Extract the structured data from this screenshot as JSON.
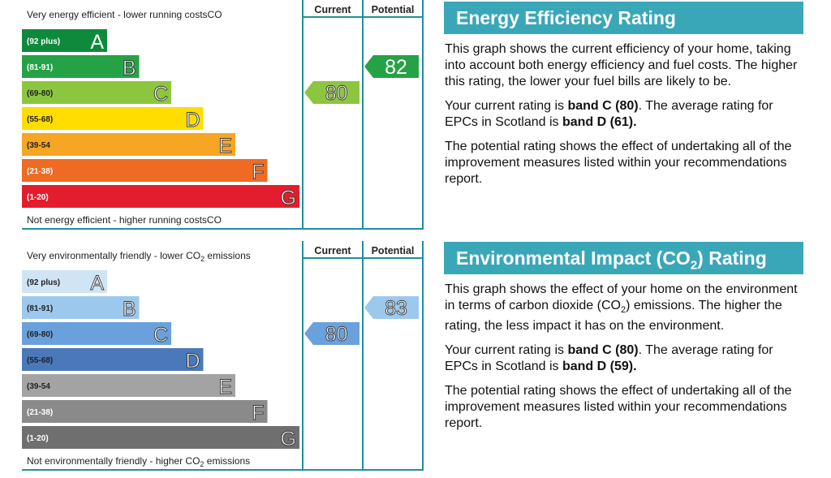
{
  "chart_data": [
    {
      "type": "table",
      "title": "",
      "top_label": "Very energy efficient - lower running costs",
      "bottom_label": "Not energy efficient - higher running costs",
      "columns": [
        "Current",
        "Potential"
      ],
      "bands": [
        {
          "range": "(92 plus)",
          "letter": "A",
          "color": "#0f8a3c",
          "text": "light",
          "letter_style": "solid"
        },
        {
          "range": "(81-91)",
          "letter": "B",
          "color": "#26a246",
          "text": "light",
          "letter_style": "outline"
        },
        {
          "range": "(69-80)",
          "letter": "C",
          "color": "#8cc63f",
          "text": "dark",
          "letter_style": "outline"
        },
        {
          "range": "(55-68)",
          "letter": "D",
          "color": "#ffdd00",
          "text": "dark",
          "letter_style": "outline"
        },
        {
          "range": "(39-54",
          "letter": "E",
          "color": "#f6a623",
          "text": "dark",
          "letter_style": "outline"
        },
        {
          "range": "(21-38)",
          "letter": "F",
          "color": "#ef6a23",
          "text": "light",
          "letter_style": "outline"
        },
        {
          "range": "(1-20)",
          "letter": "G",
          "color": "#e31d2d",
          "text": "light",
          "letter_style": "outline"
        }
      ],
      "current": {
        "value": 80,
        "band": "C",
        "color": "#8cc63f",
        "text_style": "outline"
      },
      "potential": {
        "value": 82,
        "band": "B",
        "color": "#26a246",
        "text_style": "solid"
      }
    },
    {
      "type": "table",
      "title": "",
      "top_label": "Very environmentally friendly - lower CO2 emissions",
      "bottom_label": "Not environmentally friendly - higher CO2 emissions",
      "columns": [
        "Current",
        "Potential"
      ],
      "bands": [
        {
          "range": "(92 plus)",
          "letter": "A",
          "color": "#cfe4f5",
          "text": "dark",
          "letter_style": "outline"
        },
        {
          "range": "(81-91)",
          "letter": "B",
          "color": "#9cc8ed",
          "text": "dark",
          "letter_style": "outline"
        },
        {
          "range": "(69-80)",
          "letter": "C",
          "color": "#6aa1dc",
          "text": "dark",
          "letter_style": "outline"
        },
        {
          "range": "(55-68)",
          "letter": "D",
          "color": "#4a78b8",
          "text": "dark",
          "letter_style": "outline"
        },
        {
          "range": "(39-54",
          "letter": "E",
          "color": "#a3a3a3",
          "text": "dark",
          "letter_style": "outline"
        },
        {
          "range": "(21-38)",
          "letter": "F",
          "color": "#8a8a8a",
          "text": "light",
          "letter_style": "outline"
        },
        {
          "range": "(1-20)",
          "letter": "G",
          "color": "#6f6f6f",
          "text": "light",
          "letter_style": "outline"
        }
      ],
      "current": {
        "value": 80,
        "band": "C",
        "color": "#6aa1dc",
        "text_style": "outline"
      },
      "potential": {
        "value": 83,
        "band": "B",
        "color": "#9cc8ed",
        "text_style": "outline"
      }
    }
  ],
  "panels": {
    "energy": {
      "title": "Energy Efficiency Rating",
      "p1": "This graph shows the current efficiency of your home, taking into account both energy efficiency and fuel costs. The higher this rating, the lower your fuel bills are likely to be.",
      "p2_pre": "Your current rating is ",
      "p2_band": "band C (80)",
      "p2_mid": ". The average rating for EPCs in Scotland is ",
      "p2_avg": "band D (61).",
      "p3": "The potential rating shows the effect of undertaking all of the improvement measures listed within your recommendations report."
    },
    "environment": {
      "title_pre": "Environmental Impact (CO",
      "title_sub": "2",
      "title_post": ") Rating",
      "p1_pre": "This graph shows the effect of your home on the environment in terms of carbon dioxide (CO",
      "p1_sub": "2",
      "p1_post": ") emissions. The higher the rating, the less impact it has on the environment.",
      "p2_pre": "Your current rating is ",
      "p2_band": "band C (80)",
      "p2_mid": ". The average rating for EPCs in Scotland is ",
      "p2_avg": "band D (59).",
      "p3": "The potential rating shows the effect of undertaking all of the improvement measures listed within your recommendations report."
    }
  },
  "colors": {
    "frame": "#1f8fa0",
    "title_bg": "#3aa7b8"
  }
}
